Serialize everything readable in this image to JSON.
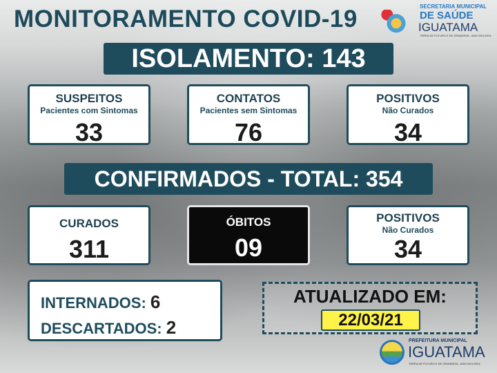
{
  "title": "MONITORAMENTO COVID-19",
  "isolamento": "ISOLAMENTO: 143",
  "row1": [
    {
      "label": "SUSPEITOS",
      "sub": "Pacientes com Sintomas",
      "value": "33"
    },
    {
      "label": "CONTATOS",
      "sub": "Pacientes sem Sintomas",
      "value": "76"
    },
    {
      "label": "POSITIVOS",
      "sub": "Não Curados",
      "value": "34"
    }
  ],
  "confirmados": "CONFIRMADOS - TOTAL: 354",
  "row2": [
    {
      "label": "CURADOS",
      "value": "311"
    },
    {
      "label": "ÓBITOS",
      "value": "09"
    },
    {
      "label": "POSITIVOS",
      "sub": "Não Curados",
      "value": "34"
    }
  ],
  "internados": {
    "label": "INTERNADOS:",
    "value": "6"
  },
  "descartados": {
    "label": "DESCARTADOS:",
    "value": "2"
  },
  "atualizado": {
    "label": "ATUALIZADO EM:",
    "date": "22/03/21"
  },
  "logo_top": {
    "line1": "SECRETARIA MUNICIPAL",
    "line2": "DE SAÚDE",
    "line3": "IGUATAMA",
    "tagline": "TERRA DE FUTURO E DE GRANDEZA - ADM 2021/2024"
  },
  "logo_bottom": {
    "line1": "PREFEITURA MUNICIPAL",
    "line2": "IGUATAMA",
    "tagline": "TERRA DE FUTURO E DE GRANDEZA - ADM 2021/2024"
  },
  "colors": {
    "primary": "#1f4c5c",
    "date_bg": "#fff34a",
    "black_box": "#0a0a0a"
  }
}
